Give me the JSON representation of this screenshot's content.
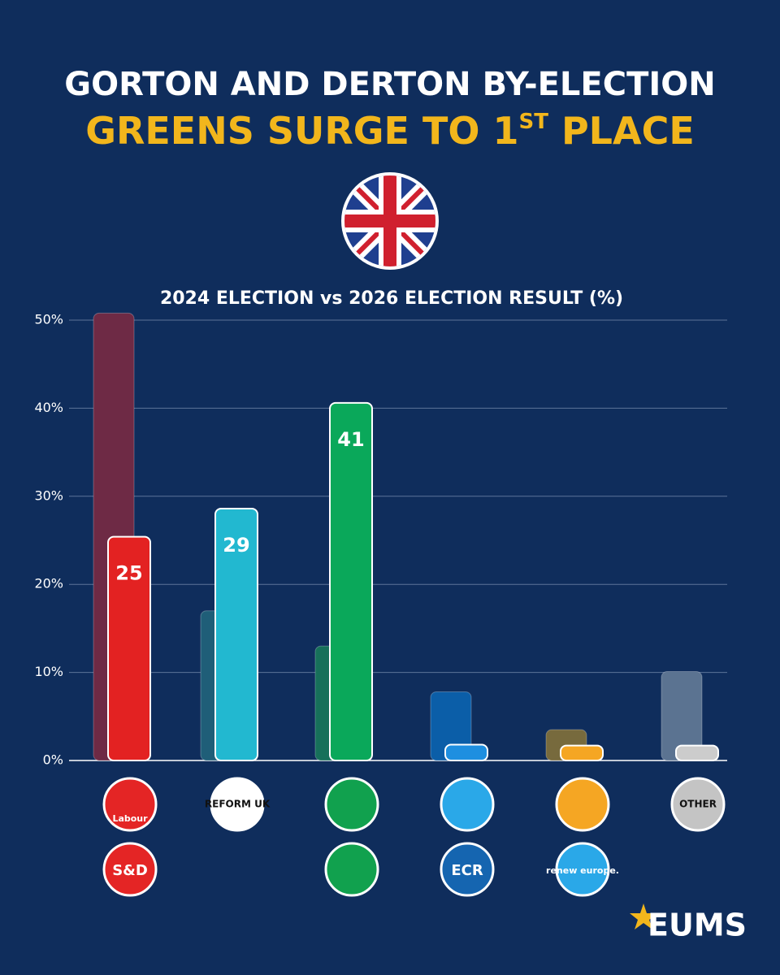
{
  "chart_data": {
    "type": "bar",
    "title": "GORTON AND DERTON BY-ELECTION",
    "headline": {
      "main": "GREENS SURGE TO 1",
      "sup": "ST",
      "rest": " PLACE"
    },
    "subtitle": "2024 ELECTION vs 2026 ELECTION RESULT (%)",
    "categories": [
      "Labour",
      "REFORM UK",
      null,
      null,
      null,
      "OTHER"
    ],
    "groups": [
      "S&D",
      null,
      null,
      "ECR",
      "renew europe.",
      null
    ],
    "category_colors": [
      "#e42525",
      "#ffffff",
      "#11a14e",
      "#2aa8e8",
      "#f5a623",
      "#c4c4c4"
    ],
    "series": [
      {
        "colors": [
          "#6e2a45",
          "#1f5e78",
          "#17705a",
          "#0b5ea8",
          "#776a3d",
          "#5b7391"
        ],
        "values": [
          50.8,
          17,
          13,
          7.8,
          3.5,
          10.1
        ]
      },
      {
        "colors": [
          "#e32222",
          "#22b8d0",
          "#0aa85a",
          "#1e8fe0",
          "#f5a623",
          "#cccccc"
        ],
        "values": [
          25.4,
          28.6,
          40.6,
          1.8,
          1.7,
          1.7
        ],
        "value_labels": [
          "25",
          "29",
          "41",
          null,
          null,
          null
        ]
      }
    ],
    "ylim": [
      0,
      50
    ],
    "yticks": [
      {
        "value": 0,
        "label": "0%"
      },
      {
        "value": 10,
        "label": "10%"
      },
      {
        "value": 20,
        "label": "20%"
      },
      {
        "value": 30,
        "label": "30%"
      },
      {
        "value": 40,
        "label": "40%"
      },
      {
        "value": 50,
        "label": "50%"
      }
    ],
    "grid": true,
    "brand": "EUMS"
  }
}
